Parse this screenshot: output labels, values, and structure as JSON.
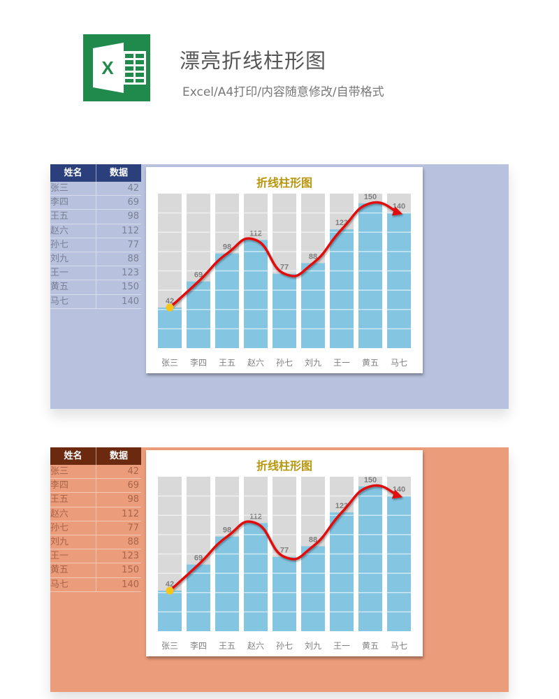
{
  "header": {
    "logo_icon": "excel-icon",
    "logo_letter": "X",
    "title": "漂亮折线柱形图",
    "subtitle": "Excel/A4打印/内容随意修改/自带格式"
  },
  "table": {
    "columns": [
      "姓名",
      "数据"
    ],
    "rows": [
      [
        "张三",
        "42"
      ],
      [
        "李四",
        "69"
      ],
      [
        "王五",
        "98"
      ],
      [
        "赵六",
        "112"
      ],
      [
        "孙七",
        "77"
      ],
      [
        "刘九",
        "88"
      ],
      [
        "王一",
        "123"
      ],
      [
        "黄五",
        "150"
      ],
      [
        "马七",
        "140"
      ]
    ]
  },
  "panels": [
    {
      "theme": "blue",
      "background": "#b8c2de",
      "header_color": "#2b3f7d"
    },
    {
      "theme": "orange",
      "background": "#eb9c7b",
      "header_color": "#6b2a10"
    }
  ],
  "chart_data": [
    {
      "type": "bar",
      "title": "折线柱形图",
      "categories": [
        "张三",
        "李四",
        "王五",
        "赵六",
        "孙七",
        "刘九",
        "王一",
        "黄五",
        "马七"
      ],
      "values": [
        42,
        69,
        98,
        112,
        77,
        88,
        123,
        150,
        140
      ],
      "background_max": 160,
      "ylim": [
        0,
        160
      ],
      "grid_step": 20,
      "overlay": "smooth red line with arrow through bar tops, yellow start marker",
      "colors": {
        "bar": "#84c6e2",
        "background_bar": "#d9d9d9",
        "line": "#e01010",
        "marker": "#f5c518",
        "title": "#b8960c"
      },
      "xlabel": "",
      "ylabel": "",
      "legend": "none",
      "data_labels": true
    },
    {
      "type": "bar",
      "title": "折线柱形图",
      "categories": [
        "张三",
        "李四",
        "王五",
        "赵六",
        "孙七",
        "刘九",
        "王一",
        "黄五",
        "马七"
      ],
      "values": [
        42,
        69,
        98,
        112,
        77,
        88,
        123,
        150,
        140
      ],
      "background_max": 160,
      "ylim": [
        0,
        160
      ],
      "grid_step": 20,
      "overlay": "smooth red line with arrow through bar tops, yellow start marker",
      "colors": {
        "bar": "#84c6e2",
        "background_bar": "#d9d9d9",
        "line": "#e01010",
        "marker": "#f5c518",
        "title": "#b8960c"
      },
      "xlabel": "",
      "ylabel": "",
      "legend": "none",
      "data_labels": true
    }
  ]
}
